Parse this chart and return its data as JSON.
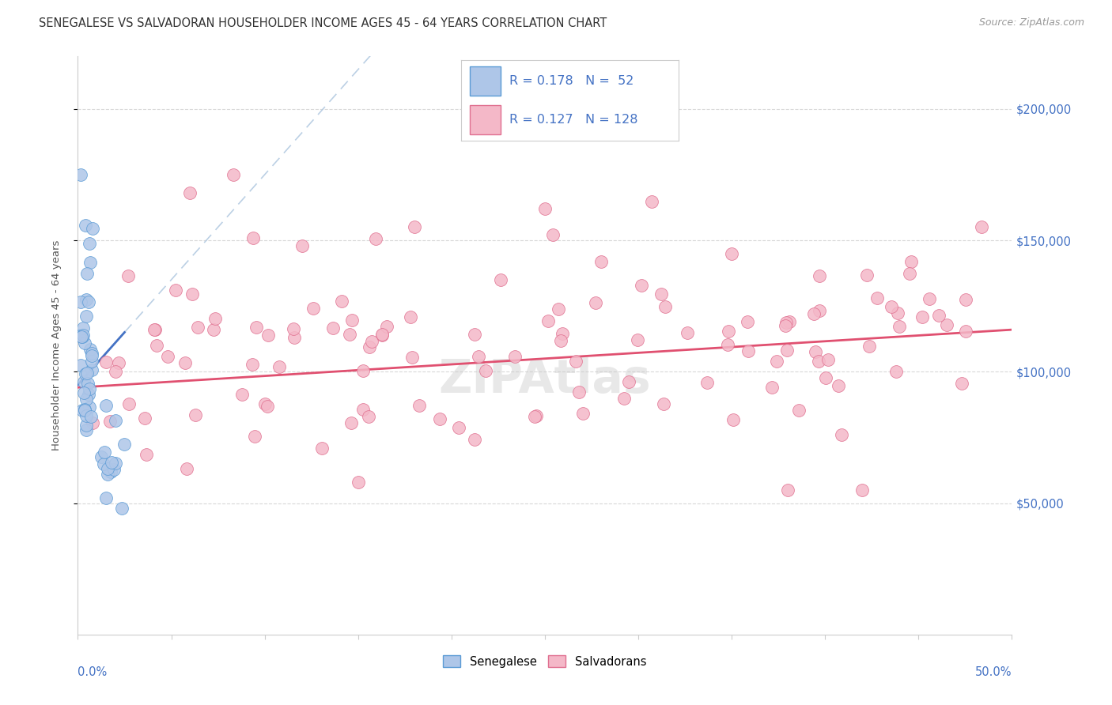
{
  "title": "SENEGALESE VS SALVADORAN HOUSEHOLDER INCOME AGES 45 - 64 YEARS CORRELATION CHART",
  "source": "Source: ZipAtlas.com",
  "ylabel": "Householder Income Ages 45 - 64 years",
  "ytick_labels": [
    "$50,000",
    "$100,000",
    "$150,000",
    "$200,000"
  ],
  "ytick_values": [
    50000,
    100000,
    150000,
    200000
  ],
  "color_sene_fill": "#aec6e8",
  "color_sene_edge": "#5b9bd5",
  "color_salv_fill": "#f4b8c8",
  "color_salv_edge": "#e07090",
  "color_blue_trend": "#4472c4",
  "color_pink_trend": "#e05070",
  "color_dashed_trend": "#b0c8e0",
  "color_text_blue": "#4472c4",
  "background_color": "#ffffff",
  "grid_color": "#d8d8d8",
  "xlim": [
    0.0,
    0.5
  ],
  "ylim": [
    0,
    220000
  ],
  "legend_text1": "R = 0.178   N =  52",
  "legend_text2": "R = 0.127   N = 128"
}
